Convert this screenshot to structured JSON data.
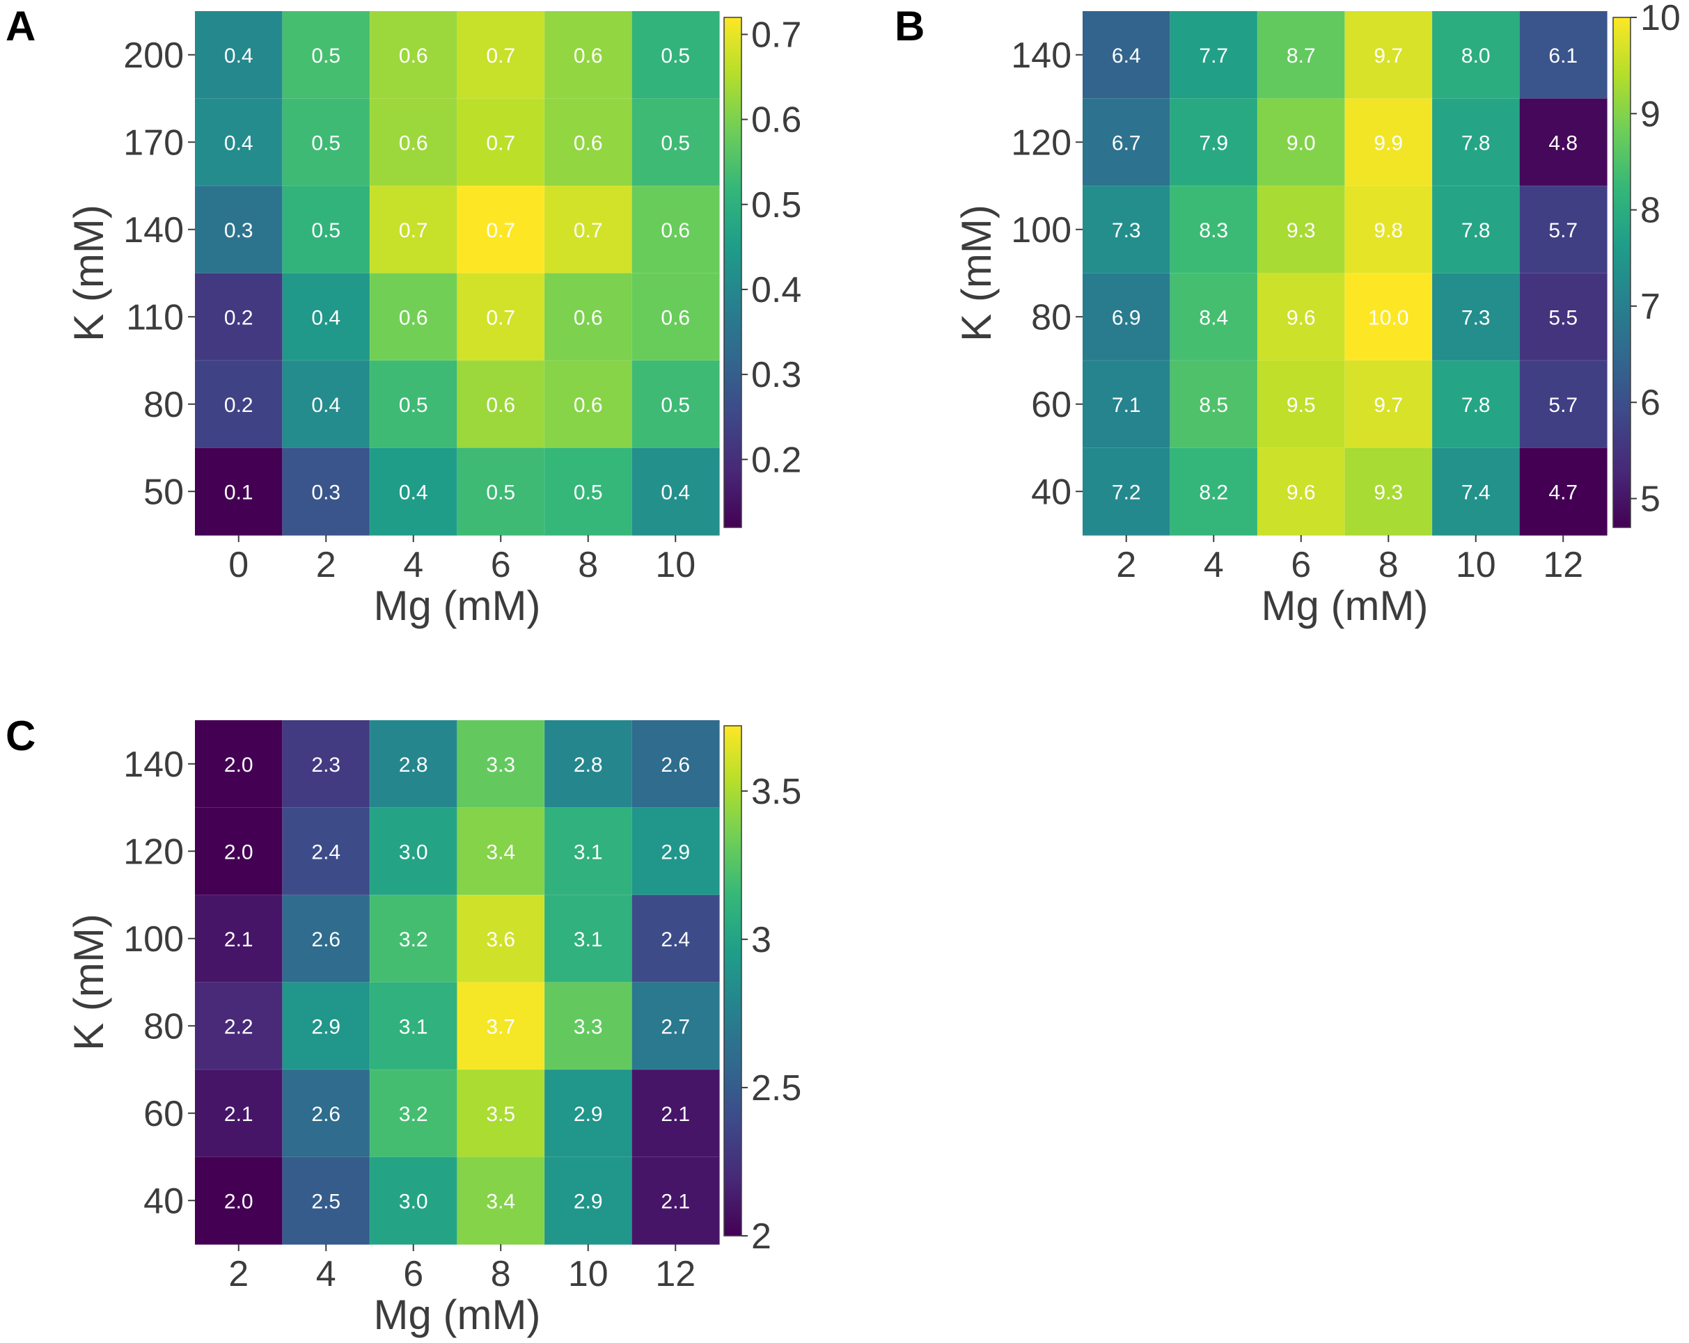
{
  "colormap": [
    "#440154",
    "#482878",
    "#3e4989",
    "#31688e",
    "#26828e",
    "#1f9e89",
    "#35b779",
    "#6ece58",
    "#b5de2b",
    "#fde725"
  ],
  "colors": {
    "axis_text": "#3c3c3c",
    "panel_label": "#000000",
    "cell_text": "#ffffff"
  },
  "chart_data": [
    {
      "type": "heatmap",
      "panel_label": "A",
      "title": "",
      "xlabel": "Mg (mM)",
      "ylabel": "K (mM)",
      "x_categories": [
        "0",
        "2",
        "4",
        "6",
        "8",
        "10"
      ],
      "y_categories": [
        "200",
        "170",
        "140",
        "110",
        "80",
        "50"
      ],
      "values": [
        [
          0.4,
          0.5,
          0.6,
          0.7,
          0.6,
          0.5
        ],
        [
          0.4,
          0.5,
          0.6,
          0.7,
          0.6,
          0.5
        ],
        [
          0.3,
          0.5,
          0.7,
          0.7,
          0.7,
          0.6
        ],
        [
          0.2,
          0.4,
          0.6,
          0.7,
          0.6,
          0.6
        ],
        [
          0.2,
          0.4,
          0.5,
          0.6,
          0.6,
          0.5
        ],
        [
          0.1,
          0.3,
          0.4,
          0.5,
          0.5,
          0.4
        ]
      ],
      "color_values": [
        [
          0.4,
          0.54,
          0.63,
          0.67,
          0.62,
          0.51
        ],
        [
          0.41,
          0.53,
          0.63,
          0.66,
          0.62,
          0.53
        ],
        [
          0.35,
          0.51,
          0.67,
          0.72,
          0.68,
          0.58
        ],
        [
          0.22,
          0.44,
          0.59,
          0.68,
          0.6,
          0.58
        ],
        [
          0.24,
          0.41,
          0.53,
          0.63,
          0.61,
          0.53
        ],
        [
          0.12,
          0.28,
          0.45,
          0.53,
          0.52,
          0.42
        ]
      ],
      "value_format": 1,
      "colorbar": {
        "min": 0.12,
        "max": 0.72,
        "ticks": [
          0.2,
          0.3,
          0.4,
          0.5,
          0.6,
          0.7
        ],
        "tick_labels": [
          "0.2",
          "0.3",
          "0.4",
          "0.5",
          "0.6",
          "0.7"
        ]
      }
    },
    {
      "type": "heatmap",
      "panel_label": "B",
      "title": "",
      "xlabel": "Mg (mM)",
      "ylabel": "K (mM)",
      "x_categories": [
        "2",
        "4",
        "6",
        "8",
        "10",
        "12"
      ],
      "y_categories": [
        "140",
        "120",
        "100",
        "80",
        "60",
        "40"
      ],
      "values": [
        [
          6.4,
          7.7,
          8.7,
          9.7,
          8.0,
          6.1
        ],
        [
          6.7,
          7.9,
          9.0,
          9.9,
          7.8,
          4.8
        ],
        [
          7.3,
          8.3,
          9.3,
          9.8,
          7.8,
          5.7
        ],
        [
          6.9,
          8.4,
          9.6,
          10.0,
          7.3,
          5.5
        ],
        [
          7.1,
          8.5,
          9.5,
          9.7,
          7.8,
          5.7
        ],
        [
          7.2,
          8.2,
          9.6,
          9.3,
          7.4,
          4.7
        ]
      ],
      "value_format": 1,
      "colorbar": {
        "min": 4.7,
        "max": 10.0,
        "ticks": [
          5,
          6,
          7,
          8,
          9,
          10
        ],
        "tick_labels": [
          "5",
          "6",
          "7",
          "8",
          "9",
          "10"
        ]
      }
    },
    {
      "type": "heatmap",
      "panel_label": "C",
      "title": "",
      "xlabel": "Mg (mM)",
      "ylabel": "K (mM)",
      "x_categories": [
        "2",
        "4",
        "6",
        "8",
        "10",
        "12"
      ],
      "y_categories": [
        "140",
        "120",
        "100",
        "80",
        "60",
        "40"
      ],
      "values": [
        [
          2.0,
          2.3,
          2.8,
          3.3,
          2.8,
          2.6
        ],
        [
          2.0,
          2.4,
          3.0,
          3.4,
          3.1,
          2.9
        ],
        [
          2.1,
          2.6,
          3.2,
          3.6,
          3.1,
          2.4
        ],
        [
          2.2,
          2.9,
          3.1,
          3.7,
          3.3,
          2.7
        ],
        [
          2.1,
          2.6,
          3.2,
          3.5,
          2.9,
          2.1
        ],
        [
          2.0,
          2.5,
          3.0,
          3.4,
          2.9,
          2.1
        ]
      ],
      "value_format": 1,
      "colorbar": {
        "min": 2.0,
        "max": 3.72,
        "ticks": [
          2,
          2.5,
          3,
          3.5
        ],
        "tick_labels": [
          "2",
          "2.5",
          "3",
          "3.5"
        ]
      }
    }
  ]
}
